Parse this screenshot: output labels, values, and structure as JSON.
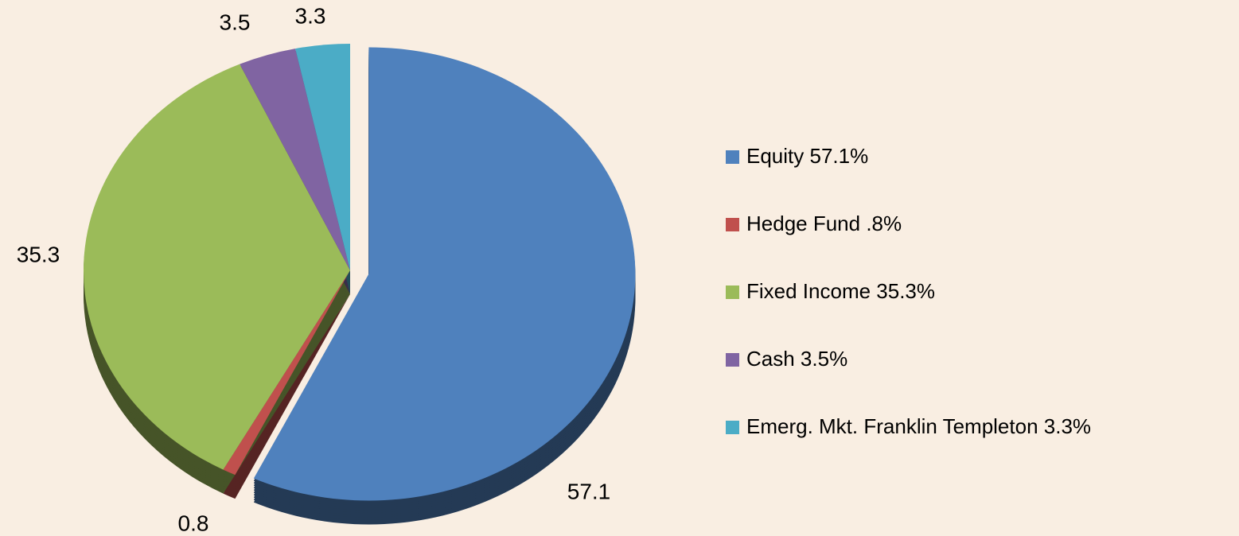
{
  "chart_data": {
    "type": "pie",
    "categories": [
      "Equity 57.1%",
      "Hedge Fund .8%",
      "Fixed Income 35.3%",
      "Cash 3.5%",
      "Emerg. Mkt. Franklin  Templeton 3.3%"
    ],
    "values": [
      57.1,
      0.8,
      35.3,
      3.5,
      3.3
    ],
    "colors": [
      "#4f81bd",
      "#c0504d",
      "#9bbb59",
      "#8064a2",
      "#4bacc6"
    ],
    "legend": "right"
  }
}
